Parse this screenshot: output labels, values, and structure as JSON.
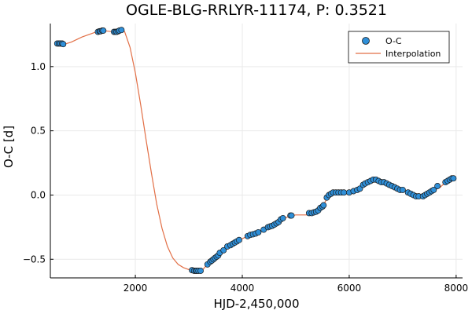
{
  "chart_data": {
    "type": "scatter",
    "title": "OGLE-BLG-RRLYR-11174, P: 0.3521",
    "xlabel": "HJD-2,450,000",
    "ylabel": "O-C [d]",
    "xlim": [
      410,
      8120
    ],
    "ylim": [
      -0.645,
      1.335
    ],
    "xticks": [
      2000,
      4000,
      6000,
      8000
    ],
    "xtick_labels": [
      "2000",
      "4000",
      "6000",
      "8000"
    ],
    "yticks": [
      -0.5,
      0.0,
      0.5,
      1.0
    ],
    "ytick_labels": [
      "−0.5",
      "0.0",
      "0.5",
      "1.0"
    ],
    "grid": true,
    "legend": {
      "position": "top-right",
      "entries": [
        "O-C",
        "Interpolation"
      ]
    },
    "colors": {
      "points": "#2f8fd8",
      "point_edge": "#1a1a1a",
      "line": "#e26f46"
    },
    "series": [
      {
        "name": "O-C",
        "kind": "scatter",
        "x": [
          540,
          570,
          600,
          630,
          650,
          1300,
          1330,
          1350,
          1380,
          1400,
          1600,
          1630,
          1650,
          1680,
          1700,
          1740,
          3060,
          3100,
          3130,
          3150,
          3180,
          3220,
          3350,
          3400,
          3430,
          3460,
          3490,
          3520,
          3550,
          3580,
          3650,
          3720,
          3780,
          3820,
          3860,
          3900,
          3940,
          4100,
          4150,
          4200,
          4250,
          4300,
          4400,
          4480,
          4520,
          4560,
          4600,
          4640,
          4680,
          4720,
          4760,
          4900,
          4920,
          5250,
          5300,
          5340,
          5380,
          5420,
          5460,
          5500,
          5520,
          5580,
          5620,
          5660,
          5700,
          5750,
          5800,
          5850,
          5900,
          6000,
          6080,
          6150,
          6200,
          6260,
          6300,
          6350,
          6400,
          6450,
          6500,
          6550,
          6600,
          6650,
          6700,
          6750,
          6800,
          6850,
          6900,
          6950,
          7000,
          7100,
          7150,
          7200,
          7250,
          7300,
          7380,
          7420,
          7460,
          7500,
          7540,
          7580,
          7650,
          7800,
          7840,
          7880,
          7920,
          7950
        ],
        "y": [
          1.18,
          1.18,
          1.18,
          1.18,
          1.175,
          1.27,
          1.275,
          1.275,
          1.28,
          1.28,
          1.27,
          1.27,
          1.27,
          1.275,
          1.28,
          1.285,
          -0.585,
          -0.59,
          -0.59,
          -0.59,
          -0.59,
          -0.59,
          -0.54,
          -0.52,
          -0.51,
          -0.5,
          -0.49,
          -0.48,
          -0.47,
          -0.45,
          -0.43,
          -0.4,
          -0.39,
          -0.38,
          -0.37,
          -0.36,
          -0.35,
          -0.32,
          -0.31,
          -0.305,
          -0.3,
          -0.29,
          -0.27,
          -0.25,
          -0.245,
          -0.24,
          -0.23,
          -0.22,
          -0.21,
          -0.19,
          -0.18,
          -0.16,
          -0.16,
          -0.14,
          -0.14,
          -0.135,
          -0.13,
          -0.12,
          -0.1,
          -0.09,
          -0.08,
          -0.02,
          0.0,
          0.01,
          0.02,
          0.02,
          0.02,
          0.02,
          0.02,
          0.02,
          0.03,
          0.04,
          0.05,
          0.08,
          0.09,
          0.1,
          0.11,
          0.12,
          0.12,
          0.11,
          0.1,
          0.1,
          0.09,
          0.08,
          0.07,
          0.06,
          0.05,
          0.04,
          0.04,
          0.02,
          0.01,
          0.0,
          -0.01,
          -0.01,
          -0.01,
          0.0,
          0.01,
          0.02,
          0.03,
          0.04,
          0.07,
          0.1,
          0.11,
          0.12,
          0.13,
          0.13
        ]
      },
      {
        "name": "Interpolation",
        "kind": "line",
        "x": [
          540,
          640,
          800,
          1000,
          1200,
          1300,
          1400,
          1500,
          1600,
          1700,
          1760,
          1800,
          1900,
          2000,
          2100,
          2200,
          2300,
          2400,
          2500,
          2600,
          2700,
          2800,
          2900,
          3000,
          3060,
          3100,
          3200,
          3260,
          3350,
          3450,
          3550,
          3650,
          3800,
          3950,
          4100,
          4300,
          4500,
          4700,
          4900,
          5000,
          5100,
          5200,
          5300,
          5400,
          5500,
          5580,
          5650,
          5800,
          6000,
          6200,
          6400,
          6500,
          6600,
          6700,
          6800,
          6900,
          7000,
          7100,
          7200,
          7300,
          7400,
          7500,
          7600,
          7700,
          7800,
          7900,
          7950
        ],
        "y": [
          1.18,
          1.17,
          1.19,
          1.23,
          1.26,
          1.275,
          1.28,
          1.275,
          1.27,
          1.275,
          1.29,
          1.27,
          1.15,
          0.95,
          0.7,
          0.43,
          0.17,
          -0.07,
          -0.26,
          -0.4,
          -0.49,
          -0.54,
          -0.565,
          -0.58,
          -0.585,
          -0.59,
          -0.595,
          -0.58,
          -0.54,
          -0.5,
          -0.47,
          -0.43,
          -0.39,
          -0.35,
          -0.32,
          -0.29,
          -0.25,
          -0.2,
          -0.16,
          -0.155,
          -0.155,
          -0.155,
          -0.14,
          -0.12,
          -0.09,
          -0.03,
          0.0,
          0.02,
          0.02,
          0.05,
          0.1,
          0.12,
          0.12,
          0.1,
          0.08,
          0.06,
          0.04,
          0.02,
          0.0,
          -0.01,
          -0.01,
          0.01,
          0.04,
          0.06,
          0.1,
          0.12,
          0.13
        ]
      }
    ]
  }
}
